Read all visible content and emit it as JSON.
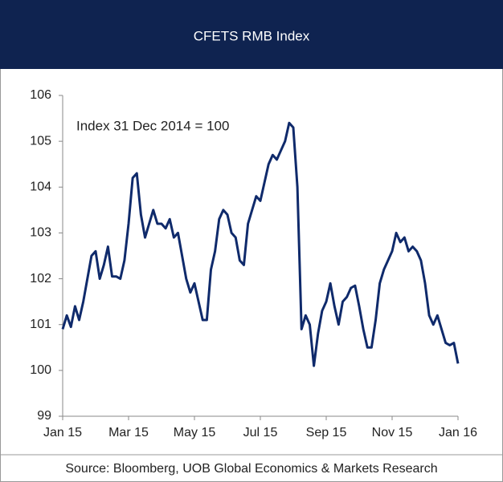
{
  "chart_data": {
    "type": "line",
    "title": "CFETS RMB Index",
    "annotation": "Index 31 Dec 2014 = 100",
    "source": "Source: Bloomberg, UOB Global Economics & Markets Research",
    "categories": [
      "Jan 15",
      null,
      null,
      null,
      null,
      null,
      null,
      null,
      null,
      null,
      null,
      null,
      null,
      null,
      null,
      null,
      "Mar 15",
      null,
      null,
      null,
      null,
      null,
      null,
      null,
      null,
      null,
      null,
      null,
      null,
      null,
      null,
      null,
      "May 15",
      null,
      null,
      null,
      null,
      null,
      null,
      null,
      null,
      null,
      null,
      null,
      null,
      null,
      null,
      null,
      "Jul 15",
      null,
      null,
      null,
      null,
      null,
      null,
      null,
      null,
      null,
      null,
      null,
      null,
      null,
      null,
      null,
      "Sep 15",
      null,
      null,
      null,
      null,
      null,
      null,
      null,
      null,
      null,
      null,
      null,
      null,
      null,
      null,
      null,
      "Nov 15",
      null,
      null,
      null,
      null,
      null,
      null,
      null,
      null,
      null,
      null,
      null,
      null,
      null,
      null,
      null,
      "Jan 16"
    ],
    "series": [
      {
        "name": "CFETS RMB Index",
        "color": "#0f2a6b",
        "values": [
          100.9,
          101.2,
          100.95,
          101.4,
          101.1,
          101.5,
          102.0,
          102.5,
          102.6,
          102.0,
          102.3,
          102.7,
          102.05,
          102.05,
          102.0,
          102.4,
          103.2,
          104.2,
          104.3,
          103.4,
          102.9,
          103.2,
          103.5,
          103.2,
          103.2,
          103.1,
          103.3,
          102.9,
          103.0,
          102.5,
          102.0,
          101.7,
          101.9,
          101.5,
          101.1,
          101.1,
          102.2,
          102.6,
          103.3,
          103.5,
          103.4,
          103.0,
          102.9,
          102.4,
          102.3,
          103.2,
          103.5,
          103.8,
          103.7,
          104.1,
          104.5,
          104.7,
          104.6,
          104.8,
          105.0,
          105.4,
          105.3,
          104.0,
          100.9,
          101.2,
          101.0,
          100.1,
          100.8,
          101.3,
          101.5,
          101.9,
          101.4,
          101.0,
          101.5,
          101.6,
          101.8,
          101.85,
          101.4,
          100.9,
          100.5,
          100.5,
          101.1,
          101.9,
          102.2,
          102.4,
          102.6,
          103.0,
          102.8,
          102.9,
          102.6,
          102.7,
          102.6,
          102.4,
          101.9,
          101.2,
          101.0,
          101.2,
          100.9,
          100.6,
          100.55,
          100.6,
          100.15
        ]
      }
    ],
    "ylim": [
      99,
      106
    ],
    "yticks": [
      99,
      100,
      101,
      102,
      103,
      104,
      105,
      106
    ],
    "grid": false
  }
}
